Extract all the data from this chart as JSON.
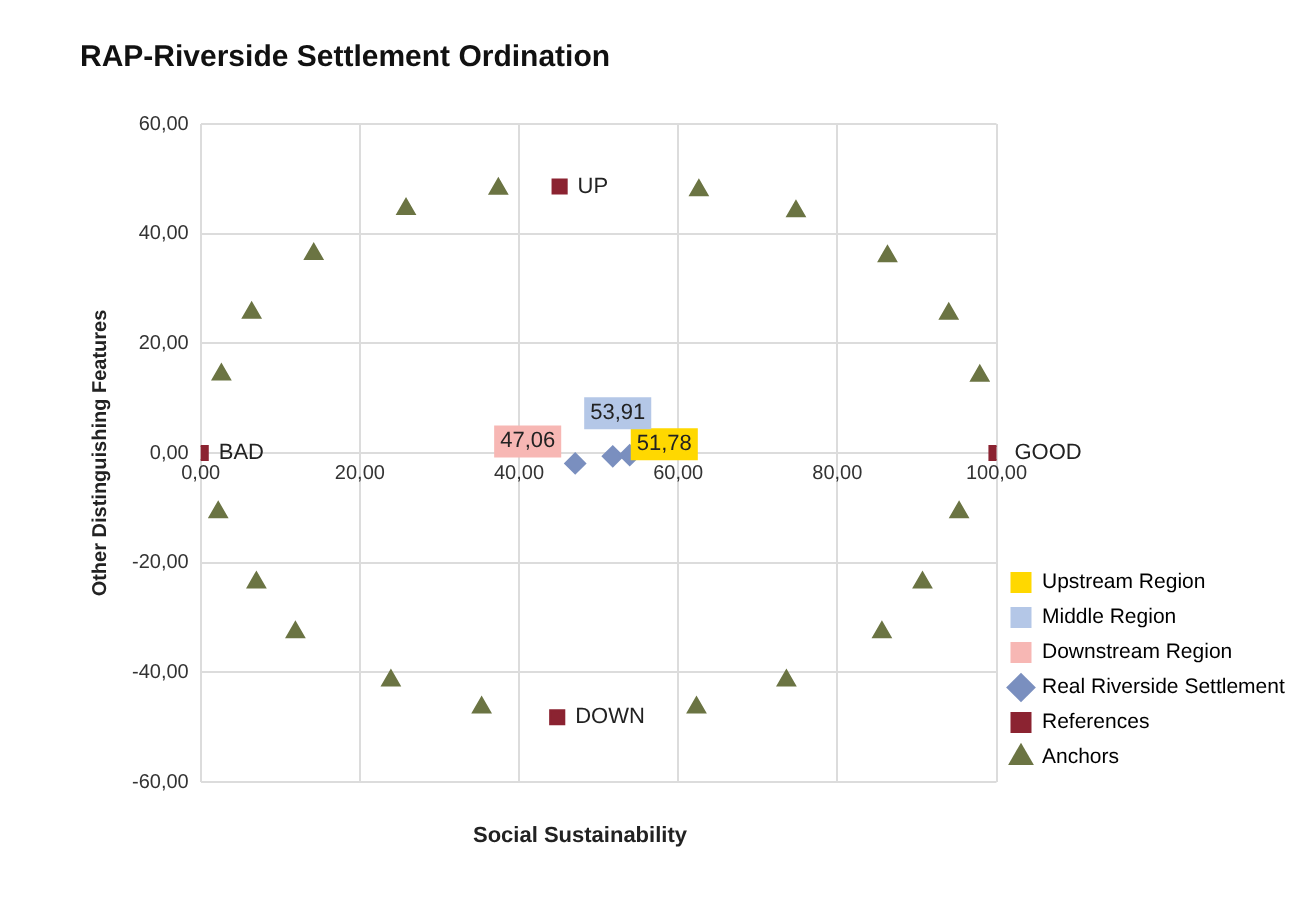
{
  "chart_data": {
    "type": "scatter",
    "title": "RAP-Riverside Settlement Ordination",
    "xlabel": "Social Sustainability",
    "ylabel": "Other Distinguishing Features",
    "xlim": [
      0,
      100
    ],
    "ylim": [
      -60,
      60
    ],
    "xticks": [
      {
        "value": 0,
        "label": "0,00"
      },
      {
        "value": 20,
        "label": "20,00"
      },
      {
        "value": 40,
        "label": "40,00"
      },
      {
        "value": 60,
        "label": "60,00"
      },
      {
        "value": 80,
        "label": "80,00"
      },
      {
        "value": 100,
        "label": "100,00"
      }
    ],
    "yticks": [
      {
        "value": -60,
        "label": "-60,00"
      },
      {
        "value": -40,
        "label": "-40,00"
      },
      {
        "value": -20,
        "label": "-20,00"
      },
      {
        "value": 0,
        "label": "0,00"
      },
      {
        "value": 20,
        "label": "20,00"
      },
      {
        "value": 40,
        "label": "40,00"
      },
      {
        "value": 60,
        "label": "60,00"
      }
    ],
    "grid": true,
    "legend": "right",
    "annotations": [
      {
        "text": "51,78",
        "x": 51.78,
        "y": -0.6
      },
      {
        "text": "53,91",
        "x": 53.91,
        "y": -0.4
      },
      {
        "text": "47,06",
        "x": 47.06,
        "y": -1.9
      }
    ],
    "series": [
      {
        "name": "Upstream Region",
        "color": "#ffd800"
      },
      {
        "name": "Middle Region",
        "color": "#b4c7e7"
      },
      {
        "name": "Downstream Region",
        "color": "#f7b7b4"
      },
      {
        "name": "Real Riverside Settlement",
        "color": "#7a8fbf",
        "marker": "diamond",
        "x": [
          47.06,
          51.78,
          53.91
        ],
        "values": [
          -1.9,
          -0.6,
          -0.4
        ]
      },
      {
        "name": "References",
        "color": "#8b2331",
        "marker": "square",
        "x": [
          0,
          100,
          45.1,
          44.8
        ],
        "values": [
          0,
          0,
          48.6,
          -48.2
        ],
        "value_labels": [
          "BAD",
          "GOOD",
          "UP",
          "DOWN"
        ]
      },
      {
        "name": "Anchors",
        "color": "#6b7443",
        "marker": "triangle",
        "x": [
          37.4,
          25.8,
          14.2,
          6.4,
          2.6,
          2.2,
          7.0,
          11.9,
          23.9,
          35.3,
          62.3,
          73.6,
          85.6,
          90.7,
          95.3,
          97.9,
          94.0,
          86.3,
          74.8,
          62.6
        ],
        "values": [
          48.2,
          44.5,
          36.3,
          25.6,
          14.3,
          -10.8,
          -23.6,
          -32.7,
          -41.5,
          -46.4,
          -46.4,
          -41.5,
          -32.7,
          -23.6,
          -10.8,
          14.1,
          25.4,
          35.9,
          44.1,
          47.9
        ]
      }
    ]
  }
}
